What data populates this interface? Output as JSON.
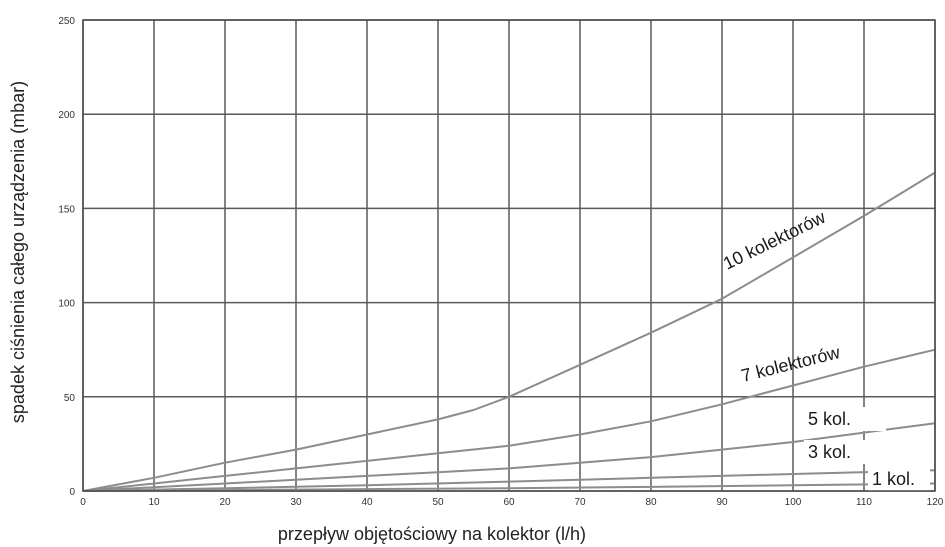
{
  "chart_data": {
    "type": "line",
    "title": "",
    "xlabel": "przepływ objętościowy na kolektor (l/h)",
    "ylabel": "spadek ciśnienia całego urządzenia  (mbar)",
    "xlim": [
      0,
      120
    ],
    "ylim": [
      0,
      250
    ],
    "xticks": [
      "0",
      "10",
      "20",
      "30",
      "40",
      "50",
      "60",
      "70",
      "80",
      "90",
      "100",
      "110",
      "120"
    ],
    "yticks": [
      "0",
      "50",
      "100",
      "150",
      "200",
      "250"
    ],
    "grid": true,
    "colors": {
      "line": "#8c8c8c",
      "grid": "#5a5a5a",
      "frame": "#4a4a4a"
    },
    "series": [
      {
        "name": "10 kolektorów",
        "x": [
          0,
          10,
          20,
          30,
          40,
          50,
          55,
          60,
          70,
          80,
          90,
          100,
          110,
          120
        ],
        "y": [
          0,
          7,
          15,
          22,
          30,
          38,
          43,
          50,
          67,
          84,
          102,
          124,
          146,
          169
        ]
      },
      {
        "name": "7 kolektorów",
        "x": [
          0,
          10,
          20,
          30,
          40,
          50,
          60,
          70,
          80,
          90,
          100,
          110,
          120
        ],
        "y": [
          0,
          4,
          8,
          12,
          16,
          20,
          24,
          30,
          37,
          46,
          56,
          66,
          75
        ]
      },
      {
        "name": "5 kol.",
        "x": [
          0,
          10,
          20,
          30,
          40,
          50,
          60,
          70,
          80,
          90,
          100,
          110,
          120
        ],
        "y": [
          0,
          2,
          4,
          6,
          8,
          10,
          12,
          15,
          18,
          22,
          26,
          31,
          36
        ]
      },
      {
        "name": "3 kol.",
        "x": [
          0,
          20,
          40,
          60,
          80,
          100,
          120
        ],
        "y": [
          0,
          1.5,
          3,
          5,
          7,
          9,
          11
        ]
      },
      {
        "name": "1 kol.",
        "x": [
          0,
          20,
          40,
          60,
          80,
          100,
          120
        ],
        "y": [
          0,
          0.5,
          1,
          1.5,
          2.2,
          3,
          4
        ]
      }
    ]
  }
}
